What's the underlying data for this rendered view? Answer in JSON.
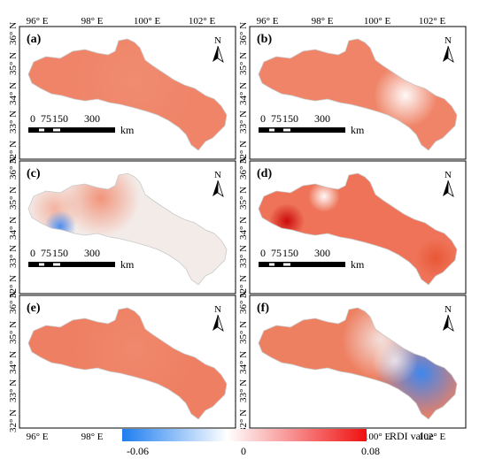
{
  "lon_ticks": [
    "96° E",
    "98° E",
    "100° E",
    "102° E"
  ],
  "lat_ticks": [
    "36° N",
    "35° N",
    "34° N",
    "33° N",
    "32° N"
  ],
  "north_label": "N",
  "scale_bar": {
    "ticks": [
      "0",
      "75",
      "150",
      "300"
    ],
    "unit": "km"
  },
  "panels": [
    {
      "label": "(a)",
      "scheme": "uniform",
      "base": "#ef8468"
    },
    {
      "label": "(b)",
      "scheme": "b",
      "base": "#ef8468"
    },
    {
      "label": "(c)",
      "scheme": "c",
      "base": "#f3ebe8"
    },
    {
      "label": "(d)",
      "scheme": "d",
      "base": "#ee7358"
    },
    {
      "label": "(e)",
      "scheme": "uniform",
      "base": "#ee7f62"
    },
    {
      "label": "(f)",
      "scheme": "f",
      "base": "#ee8062"
    }
  ],
  "legend": {
    "title": "RDI value",
    "min_label": "-0.06",
    "mid_label": "0",
    "max_label": "0.08",
    "range": [
      -0.06,
      0.08
    ],
    "colors": {
      "low": "#1e7ef0",
      "mid": "#ffffff",
      "high": "#f01010"
    }
  }
}
